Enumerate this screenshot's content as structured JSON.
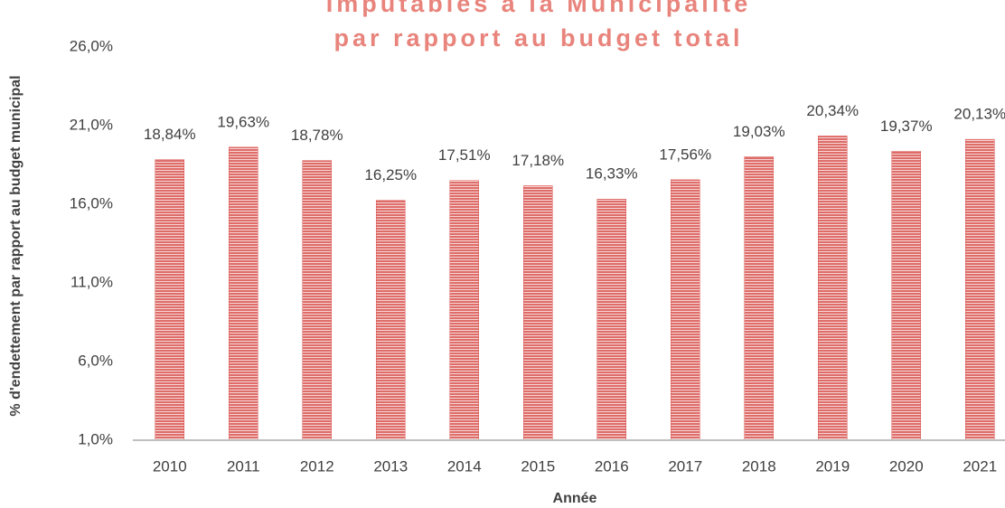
{
  "chart_data": {
    "type": "bar",
    "title": [
      "Imputables à la Municipalité",
      "par rapport au budget total"
    ],
    "x_label": "Année",
    "y_label": "% d'endettement par rapport au budget municipal",
    "categories": [
      "2010",
      "2011",
      "2012",
      "2013",
      "2014",
      "2015",
      "2016",
      "2017",
      "2018",
      "2019",
      "2020",
      "2021"
    ],
    "values": [
      18.84,
      19.63,
      18.78,
      16.25,
      17.51,
      17.18,
      16.33,
      17.56,
      19.03,
      20.34,
      19.37,
      20.13
    ],
    "value_labels": [
      "18,84%",
      "19,63%",
      "18,78%",
      "16,25%",
      "17,51%",
      "17,18%",
      "16,33%",
      "17,56%",
      "19,03%",
      "20,34%",
      "19,37%",
      "20,13%"
    ],
    "color": "#d9534f",
    "ylim": [
      1,
      26
    ],
    "yticks": [
      {
        "value": 1,
        "label": "1,0%"
      },
      {
        "value": 6,
        "label": "6,0%"
      },
      {
        "value": 11,
        "label": "11,0%"
      },
      {
        "value": 16,
        "label": "16,0%"
      },
      {
        "value": 21,
        "label": "21,0%"
      },
      {
        "value": 26,
        "label": "26,0%"
      }
    ],
    "grid": false
  }
}
